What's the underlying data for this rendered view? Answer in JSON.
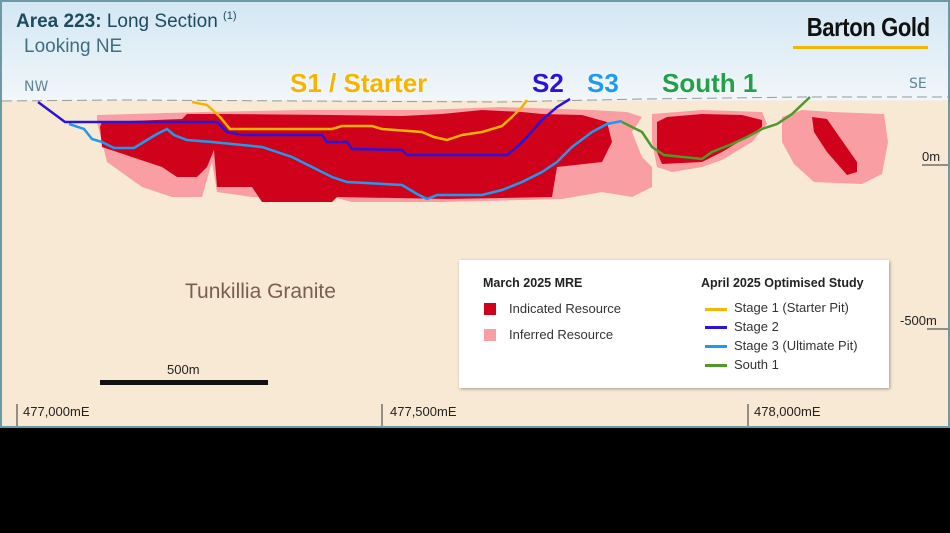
{
  "header": {
    "title_bold": "Area 223:",
    "title_rest": "Long Section",
    "title_note": "(1)",
    "subtitle": "Looking NE",
    "logo": "Barton Gold"
  },
  "directions": {
    "left": "NW",
    "right": "SE"
  },
  "pit_labels": {
    "s1": "S1 / Starter",
    "s2": "S2",
    "s3": "S3",
    "south1": "South 1"
  },
  "elevation_labels": [
    "0m",
    "-500m"
  ],
  "easting_labels": [
    "477,000mE",
    "477,500mE",
    "478,000mE"
  ],
  "scale_bar": "500m",
  "geology_label": "Tunkillia Granite",
  "legend": {
    "left_title": "March 2025 MRE",
    "left_items": [
      {
        "label": "Indicated Resource",
        "color": "#d0021b"
      },
      {
        "label": "Inferred Resource",
        "color": "#f99ea2"
      }
    ],
    "right_title": "April 2025 Optimised Study",
    "right_items": [
      {
        "label": "Stage 1 (Starter Pit)",
        "color": "#f5b400"
      },
      {
        "label": "Stage 2",
        "color": "#2a14d8"
      },
      {
        "label": "Stage 3 (Ultimate Pit)",
        "color": "#1e9bf0"
      },
      {
        "label": "South 1",
        "color": "#4d9a2a"
      }
    ]
  }
}
